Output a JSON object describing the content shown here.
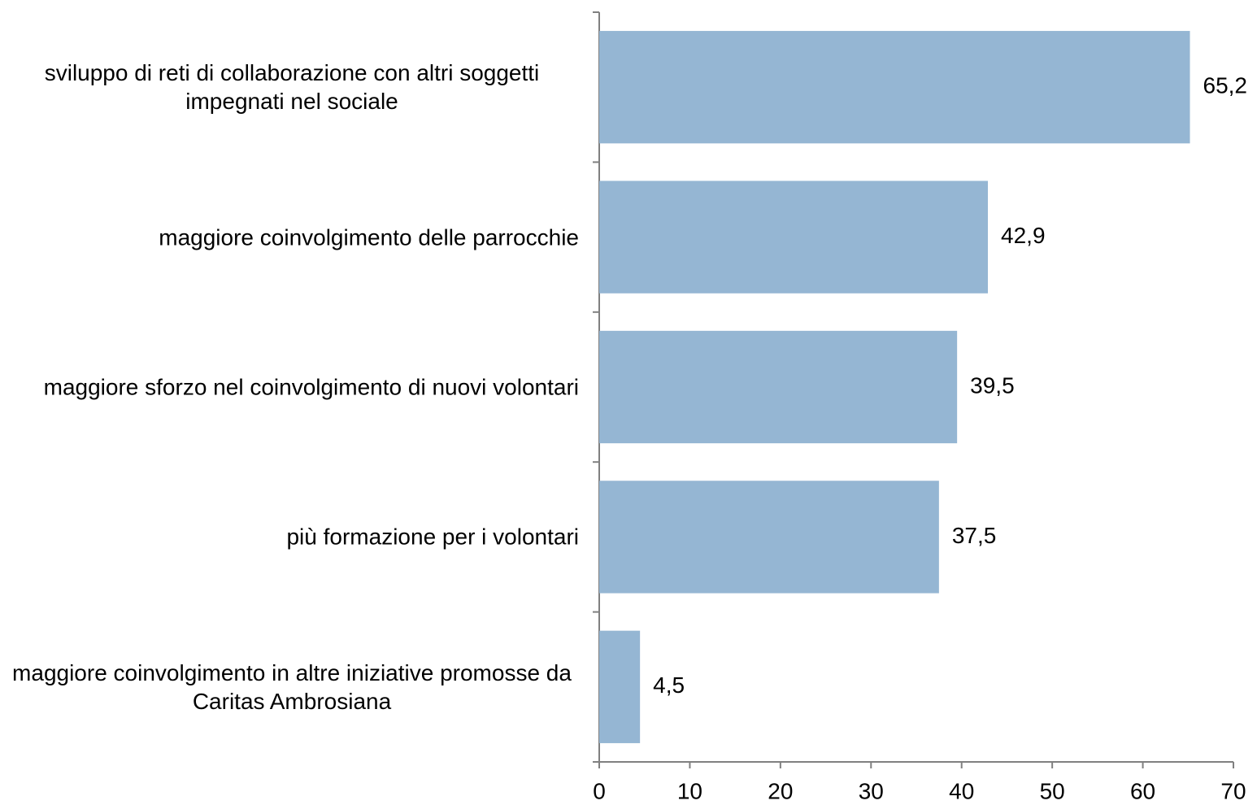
{
  "chart_data": {
    "type": "bar",
    "orientation": "horizontal",
    "categories": [
      "sviluppo di reti di collaborazione con altri soggetti impegnati nel sociale",
      "maggiore coinvolgimento delle parrocchie",
      "maggiore sforzo nel coinvolgimento di nuovi volontari",
      "più formazione per i volontari",
      "maggiore coinvolgimento in altre iniziative promosse da Caritas Ambrosiana"
    ],
    "values": [
      65.2,
      42.9,
      39.5,
      37.5,
      4.5
    ],
    "value_labels": [
      "65,2",
      "42,9",
      "39,5",
      "37,5",
      "4,5"
    ],
    "color": "#95b6d3",
    "xlim": [
      0,
      70
    ],
    "xticks": [
      0,
      10,
      20,
      30,
      40,
      50,
      60,
      70
    ]
  }
}
